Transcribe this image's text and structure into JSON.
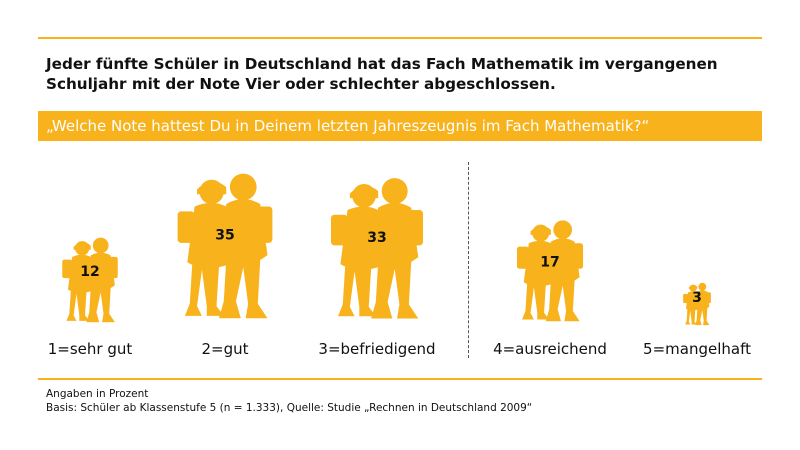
{
  "headline": "Jeder fünfte Schüler in Deutschland hat das Fach Mathematik im vergangenen Schuljahr mit der Note Vier oder schlechter abgeschlossen.",
  "question": "„Welche Note hattest Du in Deinem letzten Jahreszeugnis im Fach Mathematik?“",
  "colors": {
    "accent": "#f7b21c",
    "figure": "#f7b21c",
    "text": "#111111"
  },
  "icon": "schoolchildren-pictogram",
  "chart_data": {
    "type": "bar",
    "categories": [
      "1=sehr gut",
      "2=gut",
      "3=befriedigend",
      "4=ausreichend",
      "5=mangelhaft"
    ],
    "values": [
      12,
      35,
      33,
      17,
      3
    ],
    "unit": "Angaben in Prozent"
  },
  "footnotes": {
    "unit": "Angaben in Prozent",
    "basis": "Basis: Schüler ab Klassenstufe 5 (n = 1.333), Quelle: Studie „Rechnen in Deutschland 2009“"
  }
}
